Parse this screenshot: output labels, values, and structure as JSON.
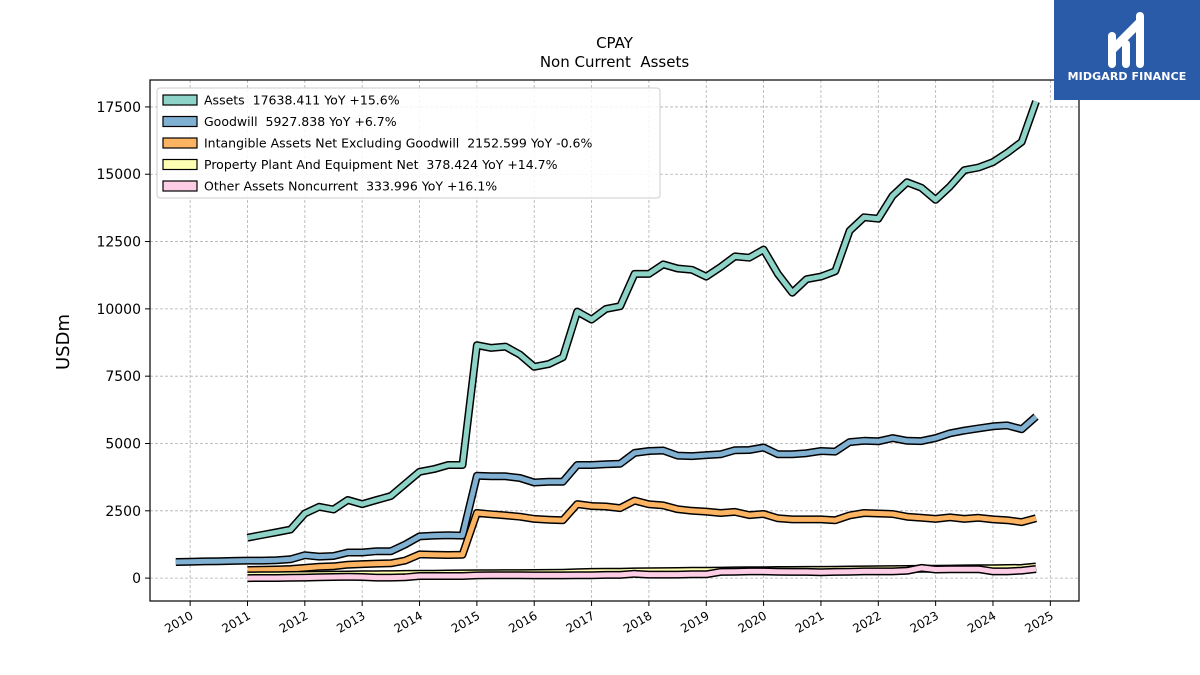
{
  "logo": {
    "text": "MIDGARD FINANCE"
  },
  "chart_data": {
    "type": "line",
    "title": "CPAY",
    "subtitle": "Non Current  Assets",
    "ylabel": "USDm",
    "xlabel": "",
    "xlim": [
      2009.3,
      2025.5
    ],
    "ylim": [
      -850,
      18500
    ],
    "yticks": [
      0,
      2500,
      5000,
      7500,
      10000,
      12500,
      15000,
      17500
    ],
    "xticks": [
      2010,
      2011,
      2012,
      2013,
      2014,
      2015,
      2016,
      2017,
      2018,
      2019,
      2020,
      2021,
      2022,
      2023,
      2024,
      2025
    ],
    "grid": true,
    "legend_position": "top-left",
    "series": [
      {
        "name": "Assets  17638.411 YoY +15.6%",
        "color": "#8dd3c7",
        "x": [
          2011.0,
          2011.25,
          2011.5,
          2011.75,
          2012.0,
          2012.25,
          2012.5,
          2012.75,
          2013.0,
          2013.25,
          2013.5,
          2013.75,
          2014.0,
          2014.25,
          2014.5,
          2014.75,
          2015.0,
          2015.25,
          2015.5,
          2015.75,
          2016.0,
          2016.25,
          2016.5,
          2016.75,
          2017.0,
          2017.25,
          2017.5,
          2017.75,
          2018.0,
          2018.25,
          2018.5,
          2018.75,
          2019.0,
          2019.25,
          2019.5,
          2019.75,
          2020.0,
          2020.25,
          2020.5,
          2020.75,
          2021.0,
          2021.25,
          2021.5,
          2021.75,
          2022.0,
          2022.25,
          2022.5,
          2022.75,
          2023.0,
          2023.25,
          2023.5,
          2023.75,
          2024.0,
          2024.25,
          2024.5,
          2024.75
        ],
        "y": [
          1500,
          1600,
          1700,
          1800,
          2400,
          2650,
          2550,
          2900,
          2750,
          2900,
          3050,
          3500,
          3950,
          4050,
          4200,
          4200,
          8650,
          8550,
          8600,
          8300,
          7850,
          7950,
          8200,
          9900,
          9600,
          10000,
          10100,
          11300,
          11300,
          11650,
          11500,
          11450,
          11200,
          11550,
          11950,
          11900,
          12200,
          11300,
          10600,
          11100,
          11200,
          11400,
          12900,
          13400,
          13350,
          14200,
          14700,
          14500,
          14050,
          14550,
          15150,
          15250,
          15450,
          15800,
          16200,
          17700
        ]
      },
      {
        "name": "Goodwill  5927.838 YoY +6.7%",
        "color": "#80b1d3",
        "x": [
          2009.75,
          2010.0,
          2010.25,
          2010.5,
          2010.75,
          2011.0,
          2011.25,
          2011.5,
          2011.75,
          2012.0,
          2012.25,
          2012.5,
          2012.75,
          2013.0,
          2013.25,
          2013.5,
          2013.75,
          2014.0,
          2014.25,
          2014.5,
          2014.75,
          2015.0,
          2015.25,
          2015.5,
          2015.75,
          2016.0,
          2016.25,
          2016.5,
          2016.75,
          2017.0,
          2017.25,
          2017.5,
          2017.75,
          2018.0,
          2018.25,
          2018.5,
          2018.75,
          2019.0,
          2019.25,
          2019.5,
          2019.75,
          2020.0,
          2020.25,
          2020.5,
          2020.75,
          2021.0,
          2021.25,
          2021.5,
          2021.75,
          2022.0,
          2022.25,
          2022.5,
          2022.75,
          2023.0,
          2023.25,
          2023.5,
          2023.75,
          2024.0,
          2024.25,
          2024.5,
          2024.75
        ],
        "y": [
          600,
          610,
          620,
          630,
          640,
          650,
          650,
          660,
          700,
          850,
          800,
          820,
          950,
          950,
          1000,
          1000,
          1250,
          1550,
          1580,
          1590,
          1580,
          3800,
          3780,
          3780,
          3720,
          3550,
          3580,
          3580,
          4200,
          4200,
          4230,
          4250,
          4650,
          4720,
          4740,
          4550,
          4530,
          4570,
          4600,
          4750,
          4760,
          4850,
          4600,
          4600,
          4640,
          4720,
          4700,
          5050,
          5100,
          5080,
          5200,
          5100,
          5090,
          5200,
          5380,
          5480,
          5560,
          5640,
          5670,
          5530,
          6000
        ]
      },
      {
        "name": "Intangible Assets Net Excluding Goodwill  2152.599 YoY -0.6%",
        "color": "#fdb462",
        "x": [
          2011.0,
          2011.25,
          2011.5,
          2011.75,
          2012.0,
          2012.25,
          2012.5,
          2012.75,
          2013.0,
          2013.25,
          2013.5,
          2013.75,
          2014.0,
          2014.25,
          2014.5,
          2014.75,
          2015.0,
          2015.25,
          2015.5,
          2015.75,
          2016.0,
          2016.25,
          2016.5,
          2016.75,
          2017.0,
          2017.25,
          2017.5,
          2017.75,
          2018.0,
          2018.25,
          2018.5,
          2018.75,
          2019.0,
          2019.25,
          2019.5,
          2019.75,
          2020.0,
          2020.25,
          2020.5,
          2020.75,
          2021.0,
          2021.25,
          2021.5,
          2021.75,
          2022.0,
          2022.25,
          2022.5,
          2022.75,
          2023.0,
          2023.25,
          2023.5,
          2023.75,
          2024.0,
          2024.25,
          2024.5,
          2024.75
        ],
        "y": [
          300,
          310,
          320,
          340,
          380,
          420,
          440,
          500,
          520,
          540,
          550,
          650,
          880,
          870,
          860,
          870,
          2420,
          2370,
          2330,
          2280,
          2200,
          2170,
          2150,
          2750,
          2680,
          2660,
          2600,
          2880,
          2740,
          2700,
          2560,
          2500,
          2470,
          2420,
          2460,
          2340,
          2380,
          2220,
          2180,
          2180,
          2180,
          2150,
          2330,
          2420,
          2400,
          2380,
          2280,
          2240,
          2200,
          2260,
          2200,
          2240,
          2180,
          2150,
          2080,
          2220
        ]
      },
      {
        "name": "Property Plant And Equipment Net  378.424 YoY +14.7%",
        "color": "#ffffb3",
        "x": [
          2011.0,
          2011.25,
          2011.5,
          2011.75,
          2012.0,
          2012.25,
          2012.5,
          2012.75,
          2013.0,
          2013.25,
          2013.5,
          2013.75,
          2014.0,
          2014.25,
          2014.5,
          2014.75,
          2015.0,
          2015.25,
          2015.5,
          2015.75,
          2016.0,
          2016.25,
          2016.5,
          2016.75,
          2017.0,
          2017.25,
          2017.5,
          2017.75,
          2018.0,
          2018.25,
          2018.5,
          2018.75,
          2019.0,
          2019.25,
          2019.5,
          2019.75,
          2020.0,
          2020.25,
          2020.5,
          2020.75,
          2021.0,
          2021.25,
          2021.5,
          2021.75,
          2022.0,
          2022.25,
          2022.5,
          2022.75,
          2023.0,
          2023.25,
          2023.5,
          2023.75,
          2024.0,
          2024.25,
          2024.5,
          2024.75
        ],
        "y": [
          100,
          105,
          110,
          115,
          120,
          125,
          130,
          135,
          140,
          145,
          150,
          155,
          160,
          165,
          170,
          175,
          180,
          180,
          185,
          185,
          190,
          195,
          200,
          220,
          230,
          235,
          240,
          250,
          255,
          260,
          265,
          270,
          275,
          280,
          285,
          290,
          295,
          300,
          300,
          305,
          305,
          310,
          320,
          325,
          330,
          335,
          340,
          345,
          350,
          355,
          360,
          365,
          370,
          375,
          380,
          430
        ]
      },
      {
        "name": "Other Assets Noncurrent  333.996 YoY +16.1%",
        "color": "#fccde5",
        "x": [
          2011.0,
          2011.25,
          2011.5,
          2011.75,
          2012.0,
          2012.25,
          2012.5,
          2012.75,
          2013.0,
          2013.25,
          2013.5,
          2013.75,
          2014.0,
          2014.25,
          2014.5,
          2014.75,
          2015.0,
          2015.25,
          2015.5,
          2015.75,
          2016.0,
          2016.25,
          2016.5,
          2016.75,
          2017.0,
          2017.25,
          2017.5,
          2017.75,
          2018.0,
          2018.25,
          2018.5,
          2018.75,
          2019.0,
          2019.25,
          2019.5,
          2019.75,
          2020.0,
          2020.25,
          2020.5,
          2020.75,
          2021.0,
          2021.25,
          2021.5,
          2021.75,
          2022.0,
          2022.25,
          2022.5,
          2022.75,
          2023.0,
          2023.25,
          2023.5,
          2023.75,
          2024.0,
          2024.25,
          2024.5,
          2024.75
        ],
        "y": [
          0,
          5,
          5,
          10,
          20,
          30,
          40,
          50,
          40,
          20,
          20,
          30,
          80,
          80,
          80,
          80,
          100,
          110,
          110,
          105,
          100,
          100,
          100,
          110,
          110,
          120,
          120,
          160,
          130,
          130,
          130,
          140,
          140,
          230,
          240,
          250,
          250,
          240,
          230,
          230,
          220,
          230,
          240,
          250,
          250,
          250,
          270,
          380,
          320,
          330,
          330,
          330,
          250,
          250,
          280,
          340
        ]
      }
    ]
  }
}
